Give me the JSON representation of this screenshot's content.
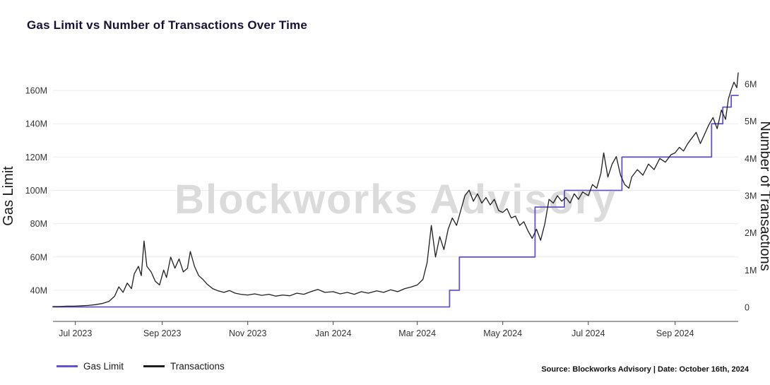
{
  "title": "Gas Limit vs Number of Transactions Over Time",
  "watermark": "Blockworks Advisory",
  "source_note": "Source: Blockworks Advisory | Date: October 16th, 2024",
  "legend": [
    {
      "label": "Gas Limit",
      "color": "#6952c8"
    },
    {
      "label": "Transactions",
      "color": "#1f1f1f"
    }
  ],
  "colors": {
    "gas_limit_line": "#6952c8",
    "transactions_line": "#1f1f1f",
    "gridline": "#ececec",
    "axis_line": "#444444",
    "title_text": "#151233",
    "watermark_text": "#dbdbdb"
  },
  "chart_data": {
    "type": "line",
    "title": "Gas Limit vs Number of Transactions Over Time",
    "x_unit": "days since 2023-06-15",
    "x_range": [
      0,
      489
    ],
    "x_ticks": [
      {
        "t": 16,
        "label": "Jul 2023"
      },
      {
        "t": 78,
        "label": "Sep 2023"
      },
      {
        "t": 139,
        "label": "Nov 2023"
      },
      {
        "t": 200,
        "label": "Jan 2024"
      },
      {
        "t": 260,
        "label": "Mar 2024"
      },
      {
        "t": 321,
        "label": "May 2024"
      },
      {
        "t": 382,
        "label": "Jul 2024"
      },
      {
        "t": 444,
        "label": "Sep 2024"
      }
    ],
    "left_axis": {
      "label": "Gas Limit",
      "range": [
        21.3,
        171.9
      ],
      "ticks": [
        40,
        60,
        80,
        100,
        120,
        140,
        160
      ],
      "tick_labels": [
        "40M",
        "60M",
        "80M",
        "100M",
        "120M",
        "140M",
        "160M"
      ],
      "grid": true
    },
    "right_axis": {
      "label": "Number of Transactions",
      "range": [
        -0.38,
        6.36
      ],
      "ticks": [
        0,
        1,
        2,
        3,
        4,
        5,
        6
      ],
      "tick_labels": [
        "0",
        "1M",
        "2M",
        "3M",
        "4M",
        "5M",
        "6M"
      ],
      "grid": false
    },
    "legend_position": "bottom-left",
    "series": [
      {
        "name": "Gas Limit",
        "axis": "left",
        "unit": "M gas",
        "color": "#6952c8",
        "stroke_width": 1.8,
        "step": true,
        "points": [
          [
            0,
            30
          ],
          [
            283,
            30
          ],
          [
            283,
            40
          ],
          [
            290,
            40
          ],
          [
            290,
            60
          ],
          [
            344,
            60
          ],
          [
            344,
            90
          ],
          [
            365,
            90
          ],
          [
            365,
            100
          ],
          [
            406,
            100
          ],
          [
            406,
            120
          ],
          [
            470,
            120
          ],
          [
            470,
            140
          ],
          [
            478,
            140
          ],
          [
            478,
            150
          ],
          [
            484,
            150
          ],
          [
            484,
            157
          ],
          [
            489,
            157
          ]
        ]
      },
      {
        "name": "Transactions",
        "axis": "right",
        "unit": "M transactions",
        "color": "#1f1f1f",
        "stroke_width": 1.3,
        "step": false,
        "points": [
          [
            0,
            0.02
          ],
          [
            5,
            0.02
          ],
          [
            10,
            0.03
          ],
          [
            15,
            0.03
          ],
          [
            20,
            0.04
          ],
          [
            25,
            0.05
          ],
          [
            30,
            0.07
          ],
          [
            35,
            0.1
          ],
          [
            40,
            0.16
          ],
          [
            44,
            0.3
          ],
          [
            47,
            0.55
          ],
          [
            50,
            0.4
          ],
          [
            53,
            0.65
          ],
          [
            56,
            0.5
          ],
          [
            58,
            0.9
          ],
          [
            61,
            1.1
          ],
          [
            63,
            0.85
          ],
          [
            65,
            1.78
          ],
          [
            67,
            1.1
          ],
          [
            70,
            0.95
          ],
          [
            73,
            0.7
          ],
          [
            76,
            0.6
          ],
          [
            79,
            1.0
          ],
          [
            81,
            0.8
          ],
          [
            84,
            1.35
          ],
          [
            87,
            1.05
          ],
          [
            90,
            1.3
          ],
          [
            93,
            0.95
          ],
          [
            96,
            1.05
          ],
          [
            98,
            1.5
          ],
          [
            101,
            1.1
          ],
          [
            104,
            0.85
          ],
          [
            107,
            0.75
          ],
          [
            110,
            0.62
          ],
          [
            114,
            0.5
          ],
          [
            118,
            0.44
          ],
          [
            122,
            0.4
          ],
          [
            126,
            0.45
          ],
          [
            130,
            0.38
          ],
          [
            134,
            0.35
          ],
          [
            139,
            0.33
          ],
          [
            144,
            0.36
          ],
          [
            149,
            0.32
          ],
          [
            154,
            0.35
          ],
          [
            159,
            0.3
          ],
          [
            164,
            0.33
          ],
          [
            169,
            0.31
          ],
          [
            174,
            0.38
          ],
          [
            179,
            0.35
          ],
          [
            184,
            0.42
          ],
          [
            189,
            0.48
          ],
          [
            194,
            0.4
          ],
          [
            200,
            0.42
          ],
          [
            205,
            0.36
          ],
          [
            210,
            0.4
          ],
          [
            215,
            0.35
          ],
          [
            220,
            0.42
          ],
          [
            225,
            0.38
          ],
          [
            231,
            0.44
          ],
          [
            236,
            0.4
          ],
          [
            241,
            0.47
          ],
          [
            246,
            0.42
          ],
          [
            251,
            0.5
          ],
          [
            256,
            0.55
          ],
          [
            260,
            0.6
          ],
          [
            264,
            0.75
          ],
          [
            267,
            1.2
          ],
          [
            270,
            2.2
          ],
          [
            273,
            1.35
          ],
          [
            276,
            1.9
          ],
          [
            279,
            1.55
          ],
          [
            282,
            2.1
          ],
          [
            285,
            2.4
          ],
          [
            288,
            2.2
          ],
          [
            291,
            2.6
          ],
          [
            294,
            3.0
          ],
          [
            297,
            3.15
          ],
          [
            300,
            2.85
          ],
          [
            303,
            3.05
          ],
          [
            306,
            2.8
          ],
          [
            309,
            2.95
          ],
          [
            312,
            2.75
          ],
          [
            315,
            2.9
          ],
          [
            318,
            2.6
          ],
          [
            321,
            2.55
          ],
          [
            324,
            2.65
          ],
          [
            327,
            2.4
          ],
          [
            330,
            2.45
          ],
          [
            333,
            2.2
          ],
          [
            336,
            2.3
          ],
          [
            339,
            2.05
          ],
          [
            342,
            1.85
          ],
          [
            345,
            2.1
          ],
          [
            348,
            1.8
          ],
          [
            351,
            2.25
          ],
          [
            354,
            2.9
          ],
          [
            357,
            2.8
          ],
          [
            360,
            3.0
          ],
          [
            363,
            2.85
          ],
          [
            366,
            2.95
          ],
          [
            369,
            2.8
          ],
          [
            372,
            3.05
          ],
          [
            375,
            2.9
          ],
          [
            378,
            3.1
          ],
          [
            382,
            3.0
          ],
          [
            385,
            3.3
          ],
          [
            388,
            3.2
          ],
          [
            391,
            3.6
          ],
          [
            393,
            4.15
          ],
          [
            396,
            3.5
          ],
          [
            399,
            3.85
          ],
          [
            402,
            4.05
          ],
          [
            405,
            3.55
          ],
          [
            408,
            3.3
          ],
          [
            411,
            3.2
          ],
          [
            413,
            3.5
          ],
          [
            417,
            3.7
          ],
          [
            421,
            3.55
          ],
          [
            425,
            3.85
          ],
          [
            429,
            3.7
          ],
          [
            433,
            4.0
          ],
          [
            437,
            3.9
          ],
          [
            441,
            4.1
          ],
          [
            444,
            4.15
          ],
          [
            447,
            4.3
          ],
          [
            450,
            4.2
          ],
          [
            453,
            4.4
          ],
          [
            456,
            4.55
          ],
          [
            459,
            4.7
          ],
          [
            462,
            4.4
          ],
          [
            465,
            4.65
          ],
          [
            468,
            4.9
          ],
          [
            471,
            5.1
          ],
          [
            474,
            4.8
          ],
          [
            477,
            5.3
          ],
          [
            480,
            5.05
          ],
          [
            482,
            5.6
          ],
          [
            484,
            5.85
          ],
          [
            486,
            6.05
          ],
          [
            488,
            5.9
          ],
          [
            489,
            6.3
          ]
        ]
      }
    ]
  }
}
